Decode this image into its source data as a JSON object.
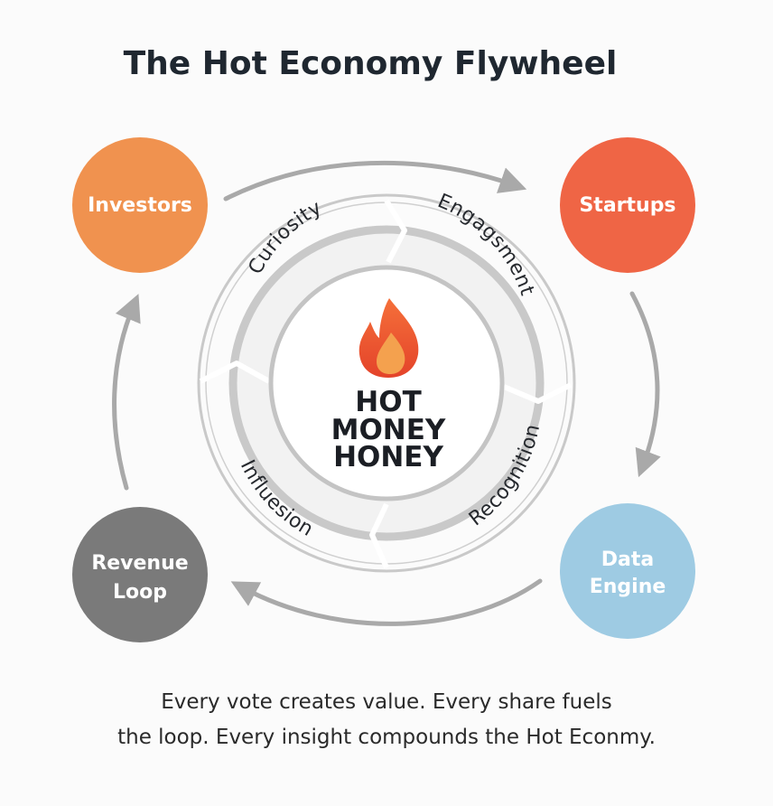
{
  "title": "The Hot Economy Flywheel",
  "nodes": {
    "investors": {
      "label": "Investors",
      "color": "#f0924f"
    },
    "startups": {
      "label": "Startups",
      "color": "#ef6545"
    },
    "data_engine": {
      "label_line1": "Data",
      "label_line2": "Engine",
      "color": "#9ecbe3"
    },
    "revenue_loop": {
      "label_line1": "Revenue",
      "label_line2": "Loop",
      "color": "#7a7a7a"
    }
  },
  "ring_segments": [
    "Curiosity",
    "Engagsment",
    "Influesion",
    "Recognition"
  ],
  "center": {
    "line1": "HOT",
    "line2": "MONEY",
    "line3": "HONEY",
    "icon": "flame-icon"
  },
  "caption": {
    "line1": "Every vote creates value. Every share fuels",
    "line2": "the loop. Every insight compounds the Hot Econmy."
  }
}
